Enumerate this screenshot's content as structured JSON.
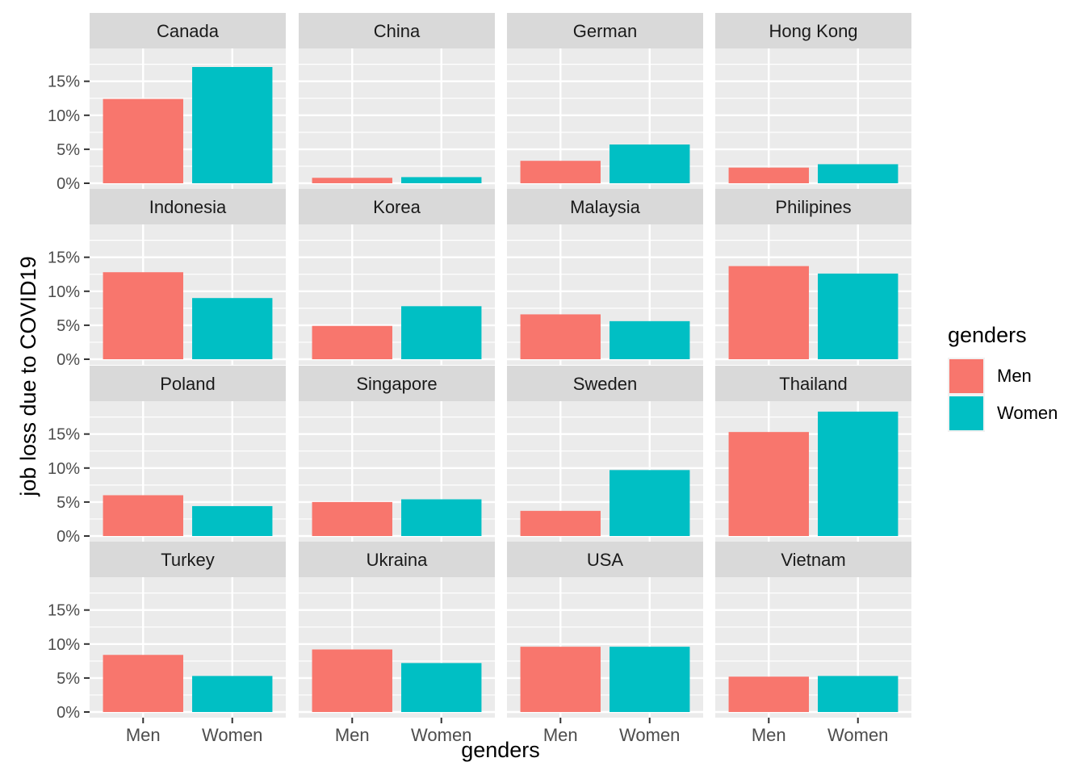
{
  "chart_data": {
    "type": "bar",
    "facet_layout": "4x4 grid",
    "categories": [
      "Men",
      "Women"
    ],
    "xlabel": "genders",
    "ylabel": "job loss due to COVID19",
    "ylim": [
      0,
      0.19
    ],
    "yticks": [
      0,
      0.05,
      0.1,
      0.15
    ],
    "ytick_labels": [
      "0%",
      "5%",
      "10%",
      "15%"
    ],
    "grid": true,
    "legend": {
      "title": "genders",
      "position": "right",
      "entries": [
        {
          "label": "Men",
          "color": "#F8766D"
        },
        {
          "label": "Women",
          "color": "#00BFC4"
        }
      ]
    },
    "colors": {
      "Men": "#F8766D",
      "Women": "#00BFC4",
      "panel_bg": "#EBEBEB",
      "strip_bg": "#D9D9D9"
    },
    "facets": [
      {
        "name": "Canada",
        "values": [
          0.124,
          0.171
        ]
      },
      {
        "name": "China",
        "values": [
          0.008,
          0.009
        ]
      },
      {
        "name": "German",
        "values": [
          0.033,
          0.057
        ]
      },
      {
        "name": "Hong Kong",
        "values": [
          0.023,
          0.028
        ]
      },
      {
        "name": "Indonesia",
        "values": [
          0.128,
          0.09
        ]
      },
      {
        "name": "Korea",
        "values": [
          0.049,
          0.078
        ]
      },
      {
        "name": "Malaysia",
        "values": [
          0.066,
          0.056
        ]
      },
      {
        "name": "Philipines",
        "values": [
          0.137,
          0.126
        ]
      },
      {
        "name": "Poland",
        "values": [
          0.06,
          0.044
        ]
      },
      {
        "name": "Singapore",
        "values": [
          0.05,
          0.054
        ]
      },
      {
        "name": "Sweden",
        "values": [
          0.037,
          0.097
        ]
      },
      {
        "name": "Thailand",
        "values": [
          0.153,
          0.183
        ]
      },
      {
        "name": "Turkey",
        "values": [
          0.084,
          0.053
        ]
      },
      {
        "name": "Ukraina",
        "values": [
          0.092,
          0.072
        ]
      },
      {
        "name": "USA",
        "values": [
          0.096,
          0.096
        ]
      },
      {
        "name": "Vietnam",
        "values": [
          0.052,
          0.053
        ]
      }
    ]
  }
}
